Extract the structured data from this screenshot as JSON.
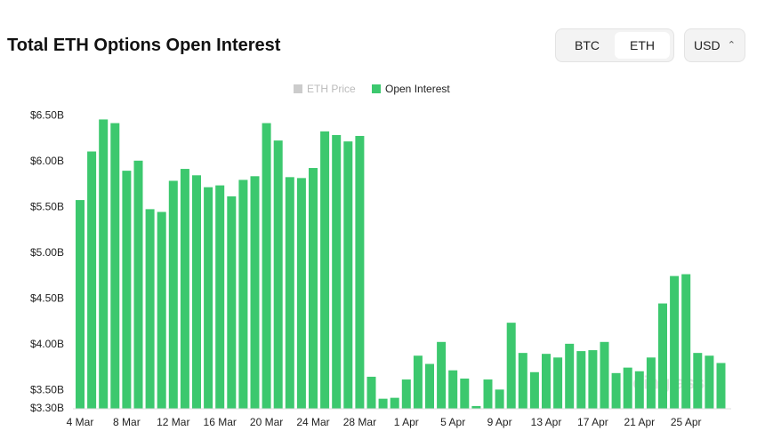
{
  "title": "Total ETH Options Open Interest",
  "controls": {
    "coins": [
      "BTC",
      "ETH"
    ],
    "currency": "USD"
  },
  "watermark": "coinglass",
  "chart_data": {
    "type": "bar",
    "categories": [
      "4 Mar",
      null,
      null,
      null,
      "8 Mar",
      null,
      null,
      null,
      "12 Mar",
      null,
      null,
      null,
      "16 Mar",
      null,
      null,
      null,
      "20 Mar",
      null,
      null,
      null,
      "24 Mar",
      null,
      null,
      null,
      "28 Mar",
      null,
      null,
      null,
      "1 Apr",
      null,
      null,
      null,
      "5 Apr",
      null,
      null,
      null,
      "9 Apr",
      null,
      null,
      null,
      "13 Apr",
      null,
      null,
      null,
      "17 Apr",
      null,
      null,
      null,
      "21 Apr",
      null,
      null,
      null,
      "25 Apr",
      null,
      null,
      null
    ],
    "series": [
      {
        "name": "Open Interest",
        "color": "#3cc86e",
        "values": [
          5.58,
          6.11,
          6.46,
          6.42,
          5.9,
          6.01,
          5.48,
          5.45,
          5.79,
          5.92,
          5.85,
          5.72,
          5.74,
          5.62,
          5.8,
          5.84,
          6.42,
          6.23,
          5.83,
          5.82,
          5.93,
          6.33,
          6.29,
          6.22,
          6.28,
          3.65,
          3.41,
          3.42,
          3.62,
          3.88,
          3.79,
          4.03,
          3.72,
          3.63,
          3.33,
          3.62,
          3.51,
          4.24,
          3.91,
          3.7,
          3.9,
          3.86,
          4.01,
          3.93,
          3.94,
          4.03,
          3.69,
          3.75,
          3.71,
          3.86,
          4.45,
          4.75,
          4.77,
          3.91,
          3.88,
          3.8
        ]
      }
    ],
    "hidden_series": [
      {
        "name": "ETH Price",
        "color": "#cccccc"
      }
    ],
    "ylim": [
      3.3,
      6.6
    ],
    "yticks": [
      {
        "value": 3.3,
        "label": "$3.30B"
      },
      {
        "value": 3.5,
        "label": "$3.50B"
      },
      {
        "value": 4.0,
        "label": "$4.00B"
      },
      {
        "value": 4.5,
        "label": "$4.50B"
      },
      {
        "value": 5.0,
        "label": "$5.00B"
      },
      {
        "value": 5.5,
        "label": "$5.50B"
      },
      {
        "value": 6.0,
        "label": "$6.00B"
      },
      {
        "value": 6.5,
        "label": "$6.50B"
      }
    ],
    "grid": false
  }
}
